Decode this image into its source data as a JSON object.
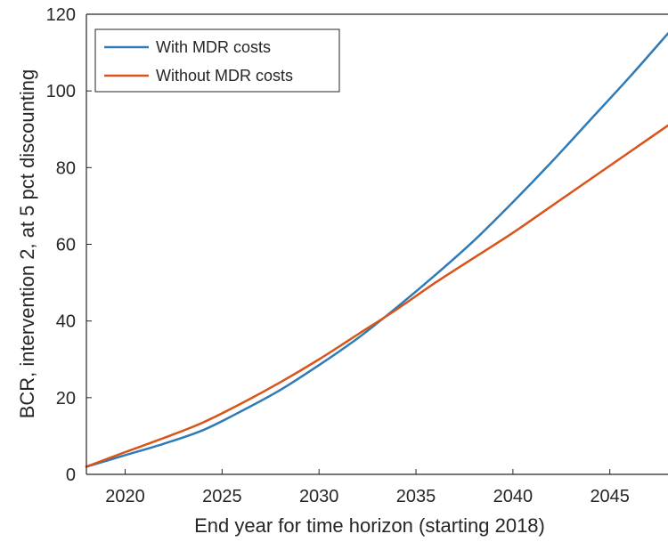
{
  "chart_data": {
    "type": "line",
    "title": "",
    "xlabel": "End year for time horizon (starting 2018)",
    "ylabel": "BCR, intervention 2, at 5 pct discounting",
    "xlim": [
      2018,
      2048
    ],
    "ylim": [
      0,
      120
    ],
    "xticks": [
      2020,
      2025,
      2030,
      2035,
      2040,
      2045
    ],
    "yticks": [
      0,
      20,
      40,
      60,
      80,
      100,
      120
    ],
    "grid": false,
    "legend_position": "top-left",
    "series": [
      {
        "name": "With MDR costs",
        "color": "#2f7bb7",
        "x": [
          2018,
          2020,
          2022,
          2024,
          2026,
          2028,
          2030,
          2032,
          2034,
          2036,
          2038,
          2040,
          2042,
          2044,
          2046,
          2048
        ],
        "y": [
          2,
          5,
          8,
          11.5,
          16.5,
          22,
          28.5,
          35.5,
          43.5,
          52,
          61,
          71,
          81.5,
          92.5,
          103.5,
          115
        ]
      },
      {
        "name": "Without MDR costs",
        "color": "#d9541a",
        "x": [
          2018,
          2020,
          2022,
          2024,
          2026,
          2028,
          2030,
          2032,
          2034,
          2036,
          2038,
          2040,
          2042,
          2044,
          2046,
          2048
        ],
        "y": [
          2,
          5.8,
          9.5,
          13.5,
          18.5,
          24,
          30,
          36.5,
          43,
          50,
          56.5,
          63,
          70,
          77,
          84,
          91
        ]
      }
    ]
  }
}
